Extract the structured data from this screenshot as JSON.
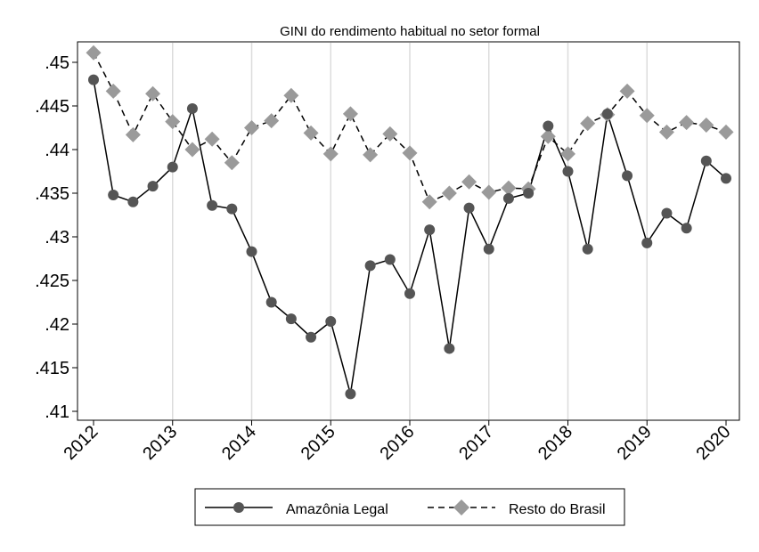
{
  "chart_data": {
    "type": "line",
    "title": "GINI do rendimento habitual no setor formal",
    "xlabel": "",
    "ylabel": "",
    "xlim": [
      2012,
      2020
    ],
    "ylim": [
      0.41,
      0.45
    ],
    "x_ticks": [
      2012,
      2013,
      2014,
      2015,
      2016,
      2017,
      2018,
      2019,
      2020
    ],
    "x_tick_labels": [
      "2012",
      "2013",
      "2014",
      "2015",
      "2016",
      "2017",
      "2018",
      "2019",
      "2020"
    ],
    "y_ticks": [
      0.41,
      0.415,
      0.42,
      0.425,
      0.43,
      0.435,
      0.44,
      0.445,
      0.45
    ],
    "y_tick_labels": [
      ".41",
      ".415",
      ".42",
      ".425",
      ".43",
      ".435",
      ".44",
      ".445",
      ".45"
    ],
    "grid": "vertical",
    "legend_position": "bottom",
    "x": [
      2012,
      2012.25,
      2012.5,
      2012.75,
      2013,
      2013.25,
      2013.5,
      2013.75,
      2014,
      2014.25,
      2014.5,
      2014.75,
      2015,
      2015.25,
      2015.5,
      2015.75,
      2016,
      2016.25,
      2016.5,
      2016.75,
      2017,
      2017.25,
      2017.5,
      2017.75,
      2018,
      2018.25,
      2018.5,
      2018.75,
      2019,
      2019.25,
      2019.5,
      2019.75,
      2020
    ],
    "series": [
      {
        "name": "Amazônia Legal",
        "color": "#555555",
        "line": "solid",
        "marker": "circle",
        "values": [
          0.448,
          0.4348,
          0.434,
          0.4358,
          0.438,
          0.4447,
          0.4336,
          0.4332,
          0.4283,
          0.4225,
          0.4206,
          0.4185,
          0.4203,
          0.412,
          0.4267,
          0.4274,
          0.4235,
          0.4308,
          0.4172,
          0.4333,
          0.4286,
          0.4344,
          0.435,
          0.4427,
          0.4375,
          0.4286,
          0.4441,
          0.437,
          0.4293,
          0.4327,
          0.431,
          0.4387,
          0.4367
        ]
      },
      {
        "name": "Resto do Brasil",
        "color": "#9a9a9a",
        "line": "dashed",
        "marker": "diamond",
        "values": [
          0.4511,
          0.4467,
          0.4417,
          0.4464,
          0.4432,
          0.44,
          0.4412,
          0.4385,
          0.4425,
          0.4433,
          0.4462,
          0.4419,
          0.4395,
          0.4441,
          0.4394,
          0.4418,
          0.4396,
          0.434,
          0.435,
          0.4363,
          0.4351,
          0.4356,
          0.4355,
          0.4415,
          0.4395,
          0.443,
          0.444,
          0.4467,
          0.4439,
          0.442,
          0.4431,
          0.4428,
          0.442
        ]
      }
    ]
  }
}
